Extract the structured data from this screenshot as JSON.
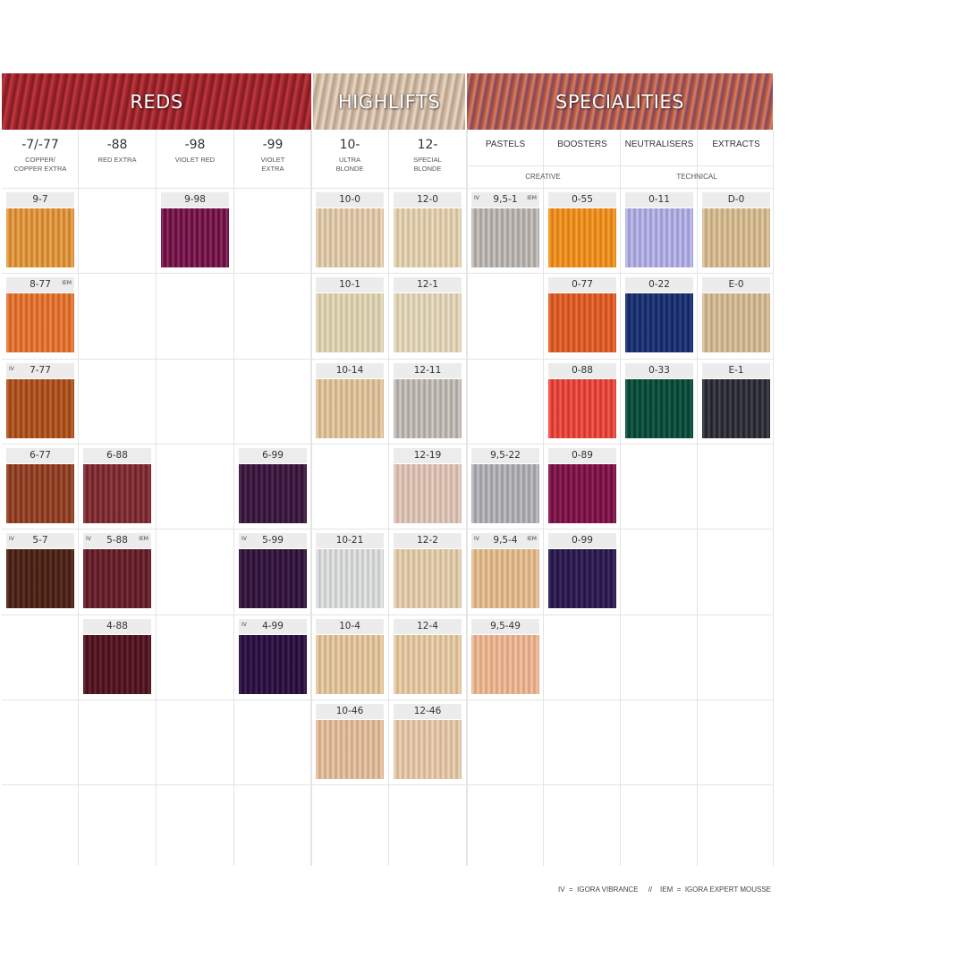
{
  "banners": {
    "reds": "REDS",
    "highlifts": "HIGHLIFTS",
    "specialities": "SPECIALITIES"
  },
  "columns": [
    {
      "code": "-7/-77",
      "name": "COPPER/\nCOPPER EXTRA"
    },
    {
      "code": "-88",
      "name": "RED EXTRA"
    },
    {
      "code": "-98",
      "name": "VIOLET RED"
    },
    {
      "code": "-99",
      "name": "VIOLET\nEXTRA"
    },
    {
      "code": "10-",
      "name": "ULTRA\nBLONDE"
    },
    {
      "code": "12-",
      "name": "SPECIAL\nBLONDE"
    }
  ],
  "special_columns": [
    "PASTELS",
    "BOOSTERS",
    "NEUTRALISERS",
    "EXTRACTS"
  ],
  "groups": {
    "creative": "CREATIVE",
    "technical": "TECHNICAL"
  },
  "swatches": [
    {
      "label": "9-7",
      "col": 0,
      "row": 0,
      "colors": [
        "#d8923e",
        "#f0b057",
        "#c8772a"
      ]
    },
    {
      "label": "9-98",
      "col": 2,
      "row": 0,
      "colors": [
        "#6e1546",
        "#a1366f",
        "#5a0c38"
      ]
    },
    {
      "label": "10-0",
      "col": 4,
      "row": 0,
      "colors": [
        "#d9c3a4",
        "#efe0c6",
        "#c9ae8c"
      ]
    },
    {
      "label": "12-0",
      "col": 5,
      "row": 0,
      "colors": [
        "#dccaa9",
        "#f0e3cb",
        "#ccb692"
      ]
    },
    {
      "label": "9,5-1",
      "col": 6,
      "row": 0,
      "iv": true,
      "iem": true,
      "colors": [
        "#b3aeaa",
        "#d4d0cc",
        "#9f9a96"
      ]
    },
    {
      "label": "0-55",
      "col": 7,
      "row": 0,
      "colors": [
        "#e98b1f",
        "#f7a93a",
        "#d87612"
      ]
    },
    {
      "label": "0-11",
      "col": 8,
      "row": 0,
      "colors": [
        "#aaa8db",
        "#cac8f2",
        "#9593cc"
      ]
    },
    {
      "label": "D-0",
      "col": 9,
      "row": 0,
      "colors": [
        "#cfb48c",
        "#e6d1ad",
        "#bda178"
      ]
    },
    {
      "label": "8-77",
      "col": 0,
      "row": 1,
      "iem": true,
      "colors": [
        "#dd7131",
        "#f18e4b",
        "#c85b22"
      ]
    },
    {
      "label": "10-1",
      "col": 4,
      "row": 1,
      "colors": [
        "#d7ccac",
        "#ebe3ca",
        "#c8bb98"
      ]
    },
    {
      "label": "12-1",
      "col": 5,
      "row": 1,
      "colors": [
        "#dccfb2",
        "#efe6d0",
        "#cbbd9e"
      ]
    },
    {
      "label": "0-77",
      "col": 7,
      "row": 1,
      "colors": [
        "#d95a25",
        "#ed7740",
        "#c54a1a"
      ]
    },
    {
      "label": "0-22",
      "col": 8,
      "row": 1,
      "colors": [
        "#1c2f6c",
        "#2f4a94",
        "#14235a"
      ]
    },
    {
      "label": "E-0",
      "col": 9,
      "row": 1,
      "colors": [
        "#cdb38e",
        "#e4cfad",
        "#bba07c"
      ]
    },
    {
      "label": "7-77",
      "col": 0,
      "row": 2,
      "iv": true,
      "colors": [
        "#a9501f",
        "#c96c36",
        "#8f4016"
      ]
    },
    {
      "label": "10-14",
      "col": 4,
      "row": 2,
      "colors": [
        "#d8bd95",
        "#edd6b3",
        "#c7a982"
      ]
    },
    {
      "label": "12-11",
      "col": 5,
      "row": 2,
      "colors": [
        "#b8b3ad",
        "#d6d2cc",
        "#a39e98"
      ]
    },
    {
      "label": "0-88",
      "col": 7,
      "row": 2,
      "colors": [
        "#e3443a",
        "#f4675a",
        "#cc3128"
      ]
    },
    {
      "label": "0-33",
      "col": 8,
      "row": 2,
      "colors": [
        "#0e4a3a",
        "#1c6b54",
        "#093a2d"
      ]
    },
    {
      "label": "E-1",
      "col": 9,
      "row": 2,
      "colors": [
        "#2d2f38",
        "#4a4c58",
        "#1f2028"
      ]
    },
    {
      "label": "6-77",
      "col": 0,
      "row": 3,
      "colors": [
        "#8d3f24",
        "#ad5a3b",
        "#76321b"
      ]
    },
    {
      "label": "6-88",
      "col": 1,
      "row": 3,
      "colors": [
        "#7c2b32",
        "#9c444b",
        "#672128"
      ]
    },
    {
      "label": "6-99",
      "col": 3,
      "row": 3,
      "colors": [
        "#3a1a3e",
        "#56305b",
        "#2b1130"
      ]
    },
    {
      "label": "12-19",
      "col": 5,
      "row": 3,
      "colors": [
        "#d8beb0",
        "#ebd6ca",
        "#c6ab9c"
      ]
    },
    {
      "label": "9,5-22",
      "col": 6,
      "row": 3,
      "colors": [
        "#a9a9ad",
        "#cacace",
        "#96969b"
      ]
    },
    {
      "label": "0-89",
      "col": 7,
      "row": 3,
      "colors": [
        "#7a1546",
        "#9c2c62",
        "#650d38"
      ]
    },
    {
      "label": "5-7",
      "col": 0,
      "row": 4,
      "iv": true,
      "colors": [
        "#4a2418",
        "#6a3a2a",
        "#3a1b11"
      ]
    },
    {
      "label": "5-88",
      "col": 1,
      "row": 4,
      "iv": true,
      "iem": true,
      "colors": [
        "#63202a",
        "#823741",
        "#511820"
      ]
    },
    {
      "label": "5-99",
      "col": 3,
      "row": 4,
      "iv": true,
      "colors": [
        "#33163d",
        "#4e2c59",
        "#260f2f"
      ]
    },
    {
      "label": "10-21",
      "col": 4,
      "row": 4,
      "colors": [
        "#d4d5d6",
        "#ebecec",
        "#c1c2c3"
      ]
    },
    {
      "label": "12-2",
      "col": 5,
      "row": 4,
      "colors": [
        "#dcc6a6",
        "#eedcc2",
        "#cbb392"
      ]
    },
    {
      "label": "9,5-4",
      "col": 6,
      "row": 4,
      "iv": true,
      "iem": true,
      "colors": [
        "#ddb588",
        "#efcfa7",
        "#cba176"
      ]
    },
    {
      "label": "0-99",
      "col": 7,
      "row": 4,
      "colors": [
        "#2d1c4e",
        "#45316b",
        "#20133e"
      ]
    },
    {
      "label": "4-88",
      "col": 1,
      "row": 5,
      "colors": [
        "#4f1621",
        "#6e2b37",
        "#3f0f19"
      ]
    },
    {
      "label": "4-99",
      "col": 3,
      "row": 5,
      "iv": true,
      "colors": [
        "#2c1240",
        "#47285e",
        "#200a31"
      ]
    },
    {
      "label": "10-4",
      "col": 4,
      "row": 5,
      "colors": [
        "#dcbf97",
        "#eed8b6",
        "#cbab83"
      ]
    },
    {
      "label": "12-4",
      "col": 5,
      "row": 5,
      "colors": [
        "#dfc39d",
        "#f0dbbb",
        "#cdaf88"
      ]
    },
    {
      "label": "9,5-49",
      "col": 6,
      "row": 5,
      "colors": [
        "#e6b08c",
        "#f4caa9",
        "#d69d79"
      ]
    },
    {
      "label": "10-46",
      "col": 4,
      "row": 6,
      "colors": [
        "#dcb795",
        "#efd1b3",
        "#c9a381"
      ]
    },
    {
      "label": "12-46",
      "col": 5,
      "row": 6,
      "colors": [
        "#dfc2a3",
        "#f0d9c0",
        "#cdae8f"
      ]
    }
  ],
  "legend": "IV  =  IGORA VIBRANCE     //    IEM  =  IGORA EXPERT MOUSSE",
  "badges": {
    "iv": "IV",
    "iem": "IEM"
  },
  "colors": {
    "reds_banner": [
      "#7d1a22",
      "#c23a3f",
      "#a0242c"
    ],
    "highlifts_banner": [
      "#cdb7a1",
      "#eadbcb",
      "#b79d86"
    ],
    "specialities_banner": [
      "#b4553c",
      "#d98064",
      "#7f4760"
    ]
  }
}
